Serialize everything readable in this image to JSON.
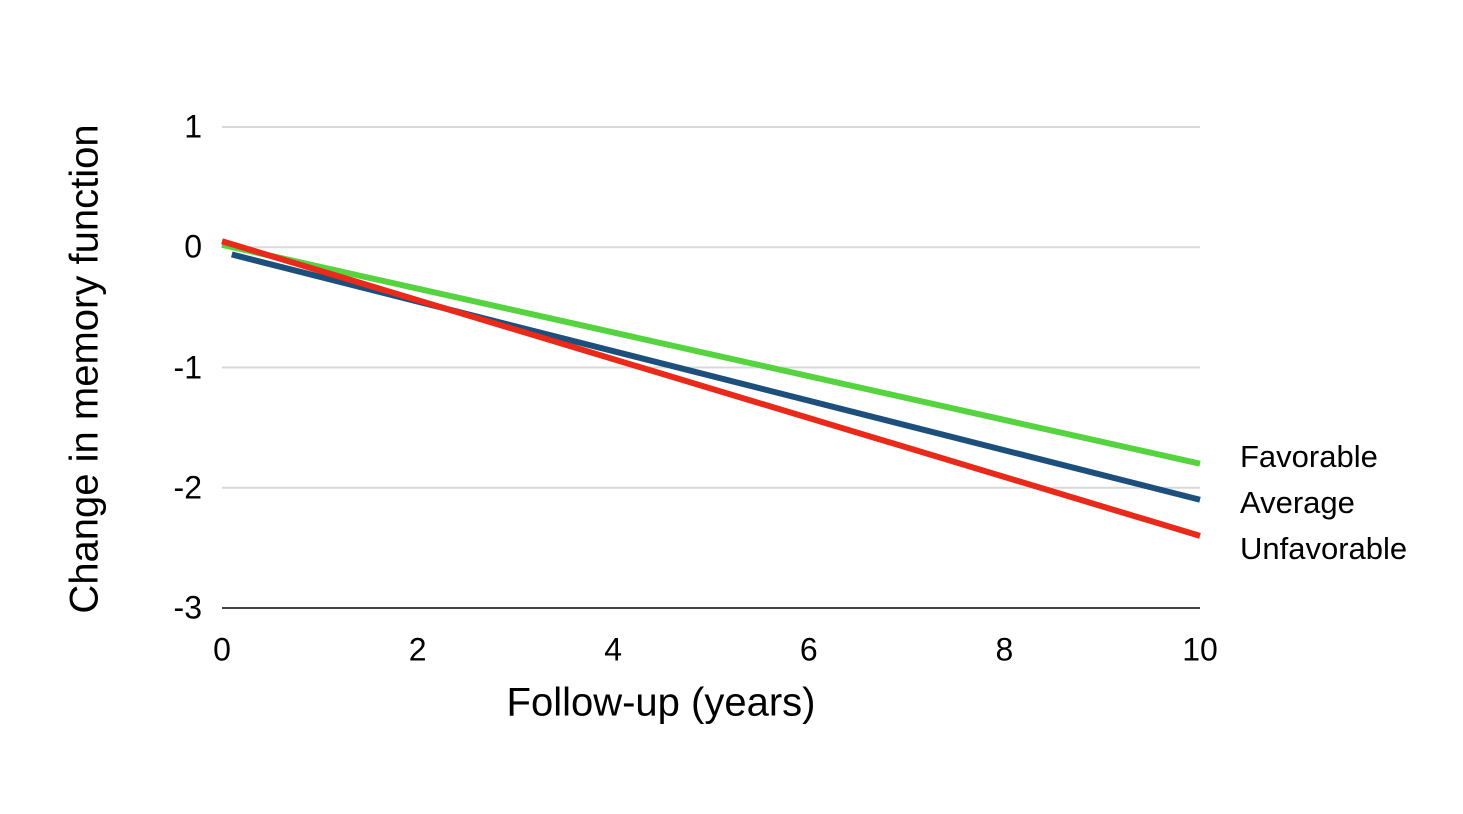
{
  "chart_data": {
    "type": "line",
    "title": "",
    "xlabel": "Follow-up (years)",
    "ylabel": "Change in memory function",
    "xlim": [
      0,
      10
    ],
    "ylim": [
      -3,
      1
    ],
    "x_ticks": [
      0,
      2,
      4,
      6,
      8,
      10
    ],
    "y_ticks": [
      1,
      0,
      -1,
      -2,
      -3
    ],
    "grid": {
      "horizontal": true,
      "vertical": false,
      "gridline_color": "#d9d9d9",
      "axis_line_color": "#444444"
    },
    "legend": {
      "position": "right-of-line-ends",
      "entries": [
        "Favorable",
        "Average",
        "Unfavorable"
      ]
    },
    "series": [
      {
        "name": "Favorable",
        "color": "#55d43f",
        "points": [
          [
            0,
            0.02
          ],
          [
            10,
            -1.8
          ]
        ]
      },
      {
        "name": "Average",
        "color": "#1c4f7c",
        "points": [
          [
            0.1,
            -0.06
          ],
          [
            10,
            -2.1
          ]
        ]
      },
      {
        "name": "Unfavorable",
        "color": "#e9291a",
        "points": [
          [
            0,
            0.05
          ],
          [
            10,
            -2.4
          ]
        ]
      }
    ]
  }
}
